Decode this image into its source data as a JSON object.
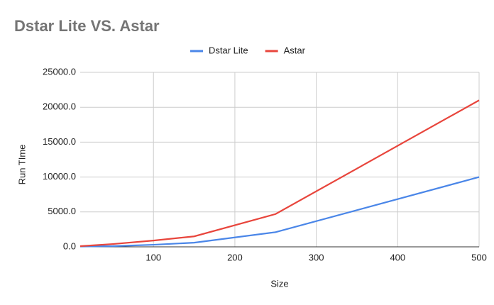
{
  "chart_data": {
    "type": "line",
    "title": "Dstar Lite VS. Astar",
    "x_label": "Size",
    "y_label": "Run TIme",
    "x": [
      10,
      50,
      100,
      150,
      250,
      500
    ],
    "series": [
      {
        "name": "Dstar Lite",
        "color": "#4a86e8",
        "values": [
          50,
          100,
          300,
          600,
          2100,
          10000
        ]
      },
      {
        "name": "Astar",
        "color": "#e8453c",
        "values": [
          100,
          400,
          900,
          1500,
          4700,
          21000
        ]
      }
    ],
    "xlim": [
      10,
      500
    ],
    "xticks": [
      100,
      200,
      300,
      400,
      500
    ],
    "ylim": [
      0,
      25000
    ],
    "yticks": [
      {
        "value": 0,
        "label": "0.0"
      },
      {
        "value": 5000,
        "label": "5000.0"
      },
      {
        "value": 10000,
        "label": "10000.0"
      },
      {
        "value": 15000,
        "label": "15000.0"
      },
      {
        "value": 20000,
        "label": "20000.0"
      },
      {
        "value": 25000,
        "label": "25000.0"
      }
    ],
    "grid": true,
    "legend": "top"
  }
}
